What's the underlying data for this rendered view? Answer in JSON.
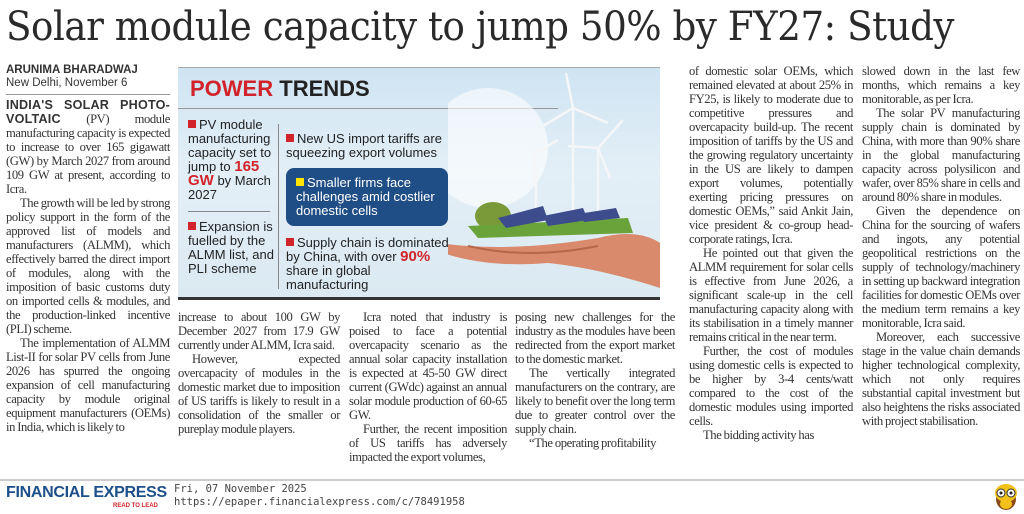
{
  "headline": "Solar module capacity to jump 50% by FY27: Study",
  "byline": {
    "author": "ARUNIMA BHARADWAJ",
    "dateline": "New Delhi, November 6"
  },
  "infographic": {
    "title_red": "POWER",
    "title_dark": "TRENDS",
    "b1": [
      "PV module manufacturing capacity set to jump to ",
      "165 GW",
      " by March 2027"
    ],
    "b2": "Expansion is fuelled by the ALMM list, and PLI scheme",
    "b3": "New US import tariffs are squeezing export volumes",
    "b4": "Smaller firms face challenges amid costlier domestic cells",
    "b5": [
      "Supply chain is dominated by China, with over ",
      "90%",
      " share in global manufacturing"
    ],
    "colors": {
      "accent": "#d2232a",
      "box": "#1f4e86",
      "box_bullet": "#ffe600"
    }
  },
  "col1": {
    "lead": "INDIA'S SOLAR PHOTO-VOLTAIC",
    "p1": " (PV) module manufacturing capacity is expected to increase to over 165 gigawatt (GW) by March 2027 from around 109 GW at present, according to Icra.",
    "p2": "The growth will be led by strong policy support in the form of the approved list of models and manufacturers (ALMM), which effectively barred the direct import of modules, along with the imposition of basic customs duty on imported cells & modules, and the production-linked incentive (PLI) scheme.",
    "p3": "The implementation of ALMM List-II for solar PV cells from June 2026 has spurred the ongoing expansion of cell manufacturing capacity by module original equipment manufacturers (OEMs) in India, which is likely to"
  },
  "col2": {
    "p1": "increase to about 100 GW by December 2027 from 17.9 GW currently under ALMM, Icra said.",
    "p2": "However, expected overcapacity of modules in the domestic market due to imposition of US tariffs is likely to result in a consolidation of the smaller or pureplay module players."
  },
  "col3": {
    "p1": "Icra noted that industry is poised to face a potential overcapacity scenario as the annual solar capacity installation is expected at 45-50 GW direct current (GWdc) against an annual solar module production of 60-65 GW.",
    "p2": "Further, the recent imposition of US tariffs has adversely impacted the export volumes,"
  },
  "col4": {
    "p1": "posing new challenges for the industry as the modules have been redirected from the export market to the domestic market.",
    "p2": "The vertically integrated manufacturers on the contrary, are likely to benefit over the long term due to greater control over the supply chain.",
    "p3": "“The operating profitability"
  },
  "col5": {
    "p1": "of domestic solar OEMs, which remained elevated at about 25% in FY25, is likely to moderate due to competitive pressures and overcapacity build-up. The recent imposition of tariffs by the US and the growing regulatory uncertainty in the US are likely to dampen export volumes, potentially exerting pricing pressures on domestic OEMs,” said Ankit Jain, vice president & co-group head-corporate ratings, Icra.",
    "p2": "He pointed out that given the ALMM requirement for solar cells is effective from June 2026, a significant scale-up in the cell manufacturing capacity along with its stabilisation in a timely manner remains critical in the near term.",
    "p3": "Further, the cost of modules using domestic cells is expected to be higher by 3-4 cents/watt compared to the cost of the domestic modules using imported cells.",
    "p4": "The bidding activity has"
  },
  "col6": {
    "p1": "slowed down in the last few months, which remains a key monitorable, as per Icra.",
    "p2": "The solar PV manufacturing supply chain is dominated by China, with more than 90% share in the global manufacturing capacity across polysilicon and wafer, over 85% share in cells and around 80% share in modules.",
    "p3": "Given the dependence on China for the sourcing of wafers and ingots, any potential geopolitical restrictions on the supply of technology/machinery in setting up backward integration facilities for domestic OEMs over the medium term remains a key monitorable, Icra said.",
    "p4": "Moreover, each successive stage in the value chain demands higher technological complexity, which not only requires substantial capital investment but also heightens the risks associated with project stabilisation."
  },
  "footer": {
    "brand": "FINANCIAL EXPRESS",
    "tagline": "READ TO LEAD",
    "date": "Fri, 07 November 2025",
    "url": "https://epaper.financialexpress.com/c/78491958",
    "mascot": "owl-icon"
  }
}
